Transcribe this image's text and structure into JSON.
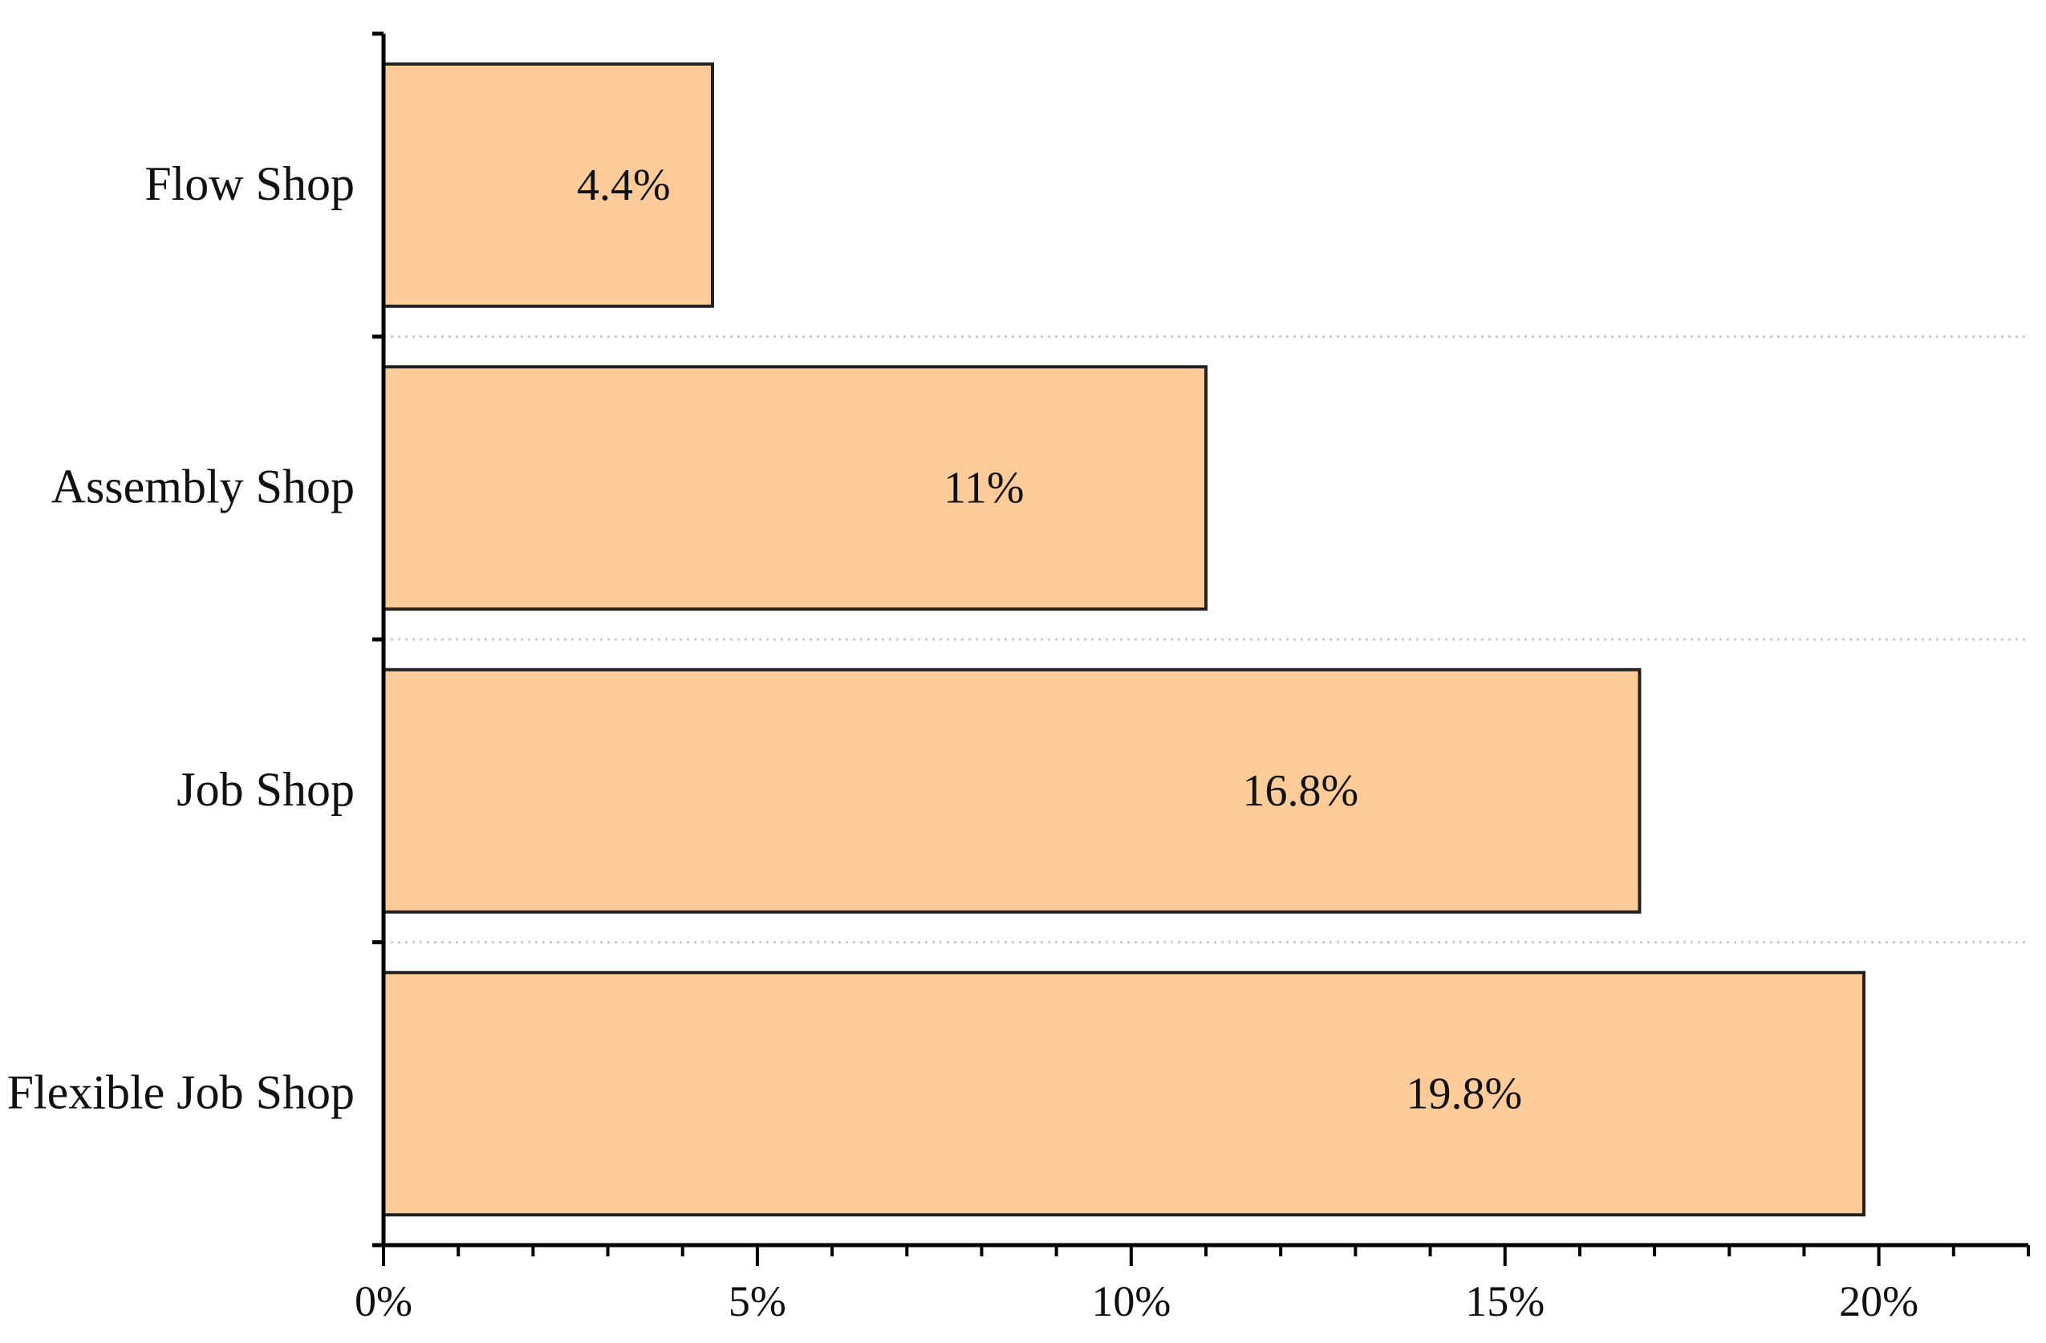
{
  "chart_data": {
    "type": "bar",
    "orientation": "horizontal",
    "categories": [
      "Flow Shop",
      "Assembly Shop",
      "Job Shop",
      "Flexible Job Shop"
    ],
    "values": [
      4.4,
      11,
      16.8,
      19.8
    ],
    "value_labels": [
      "4.4%",
      "11%",
      "16.8%",
      "19.8%"
    ],
    "xlim": [
      0,
      22
    ],
    "x_ticks": [
      0,
      5,
      10,
      15,
      20
    ],
    "x_tick_labels": [
      "0%",
      "5%",
      "10%",
      "15%",
      "20%"
    ],
    "minor_tick_step": 1,
    "title": "",
    "xlabel": "",
    "ylabel": "",
    "grid": "dotted separators between categories",
    "legend": "none",
    "colors": {
      "bar_fill": "#ffcc99",
      "bar_stroke": "#222222",
      "axis": "#000000",
      "grid": "#cccccc",
      "text": "#111111"
    }
  }
}
